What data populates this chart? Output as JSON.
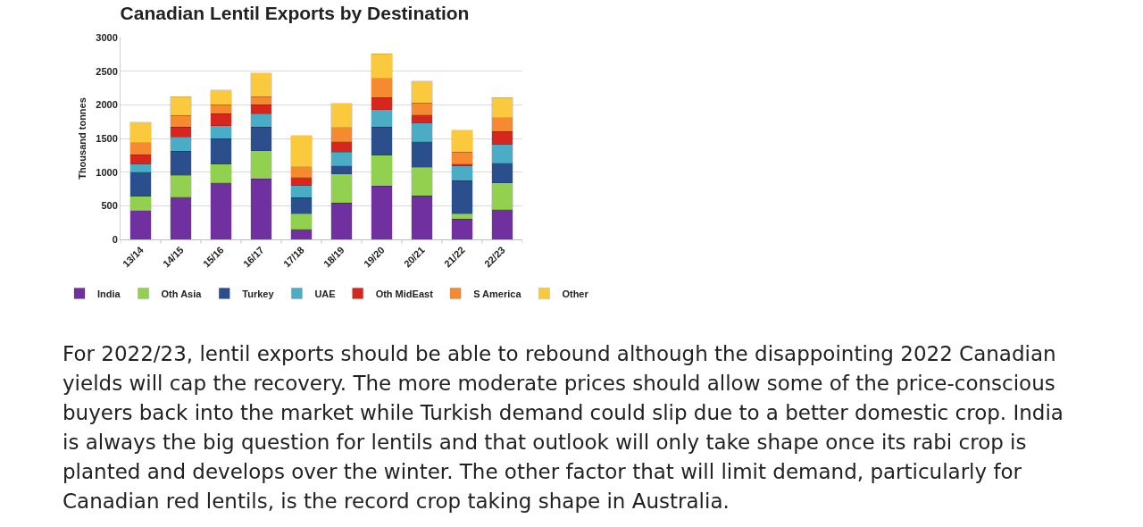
{
  "chart_data": {
    "type": "bar",
    "title": "Canadian Lentil Exports by Destination",
    "ylabel": "Thousand tonnes",
    "categories": [
      "13/14",
      "14/15",
      "15/16",
      "16/17",
      "17/18",
      "18/19",
      "19/20",
      "20/21",
      "21/22",
      "22/23"
    ],
    "stacked": true,
    "ylim": [
      0,
      3000
    ],
    "yticks": [
      0,
      500,
      1000,
      1500,
      2000,
      2500,
      3000
    ],
    "grid": "y",
    "legend": "bottom",
    "series": [
      {
        "name": "India",
        "color": "#7030a0",
        "values": [
          430,
          630,
          840,
          900,
          150,
          540,
          790,
          650,
          300,
          440
        ]
      },
      {
        "name": "Oth Asia",
        "color": "#92d050",
        "values": [
          210,
          320,
          280,
          420,
          230,
          430,
          460,
          420,
          80,
          400
        ]
      },
      {
        "name": "Turkey",
        "color": "#2a4f8c",
        "values": [
          360,
          360,
          380,
          350,
          240,
          120,
          420,
          380,
          490,
          290
        ]
      },
      {
        "name": "UAE",
        "color": "#4bacc6",
        "values": [
          120,
          210,
          190,
          200,
          180,
          210,
          260,
          280,
          220,
          280
        ]
      },
      {
        "name": "Oth MidEast",
        "color": "#d7261e",
        "values": [
          140,
          150,
          180,
          130,
          120,
          150,
          180,
          120,
          30,
          190
        ]
      },
      {
        "name": "S America",
        "color": "#f58a30",
        "values": [
          180,
          170,
          130,
          120,
          160,
          210,
          280,
          180,
          180,
          210
        ]
      },
      {
        "name": "Other",
        "color": "#fbc93d",
        "values": [
          300,
          280,
          220,
          350,
          460,
          360,
          370,
          320,
          320,
          300
        ]
      }
    ],
    "annotations": [
      "For 2022/23, lentil exports should be able to rebound although the disappointing 2022 Canadian yields will cap the recovery. The more moderate prices should allow some of the price-conscious buyers back into the market while Turkish demand could slip due to a better domestic crop. India is always the big question for lentils and that outlook will only take shape once its rabi crop is planted and develops over the winter. The other factor that will limit demand, particularly for Canadian red lentils, is the record crop taking shape in Australia."
    ]
  }
}
